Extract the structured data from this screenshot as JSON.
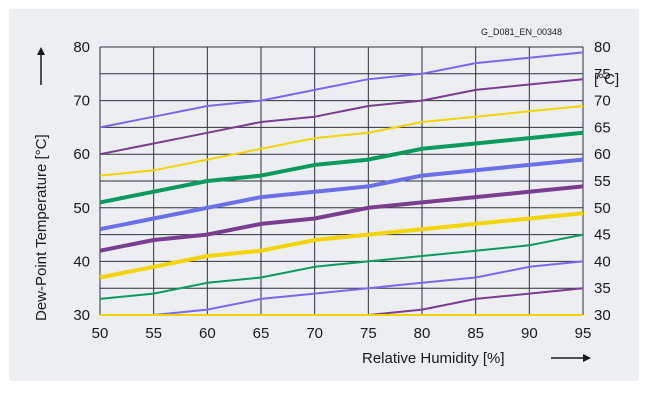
{
  "chart_data": {
    "type": "line",
    "code": "G_D081_EN_00348",
    "xlabel": "Relative Humidity [%]",
    "ylabel": "Dew-Point Temperature [°C]",
    "secondary_axis_unit": "[°C]",
    "xlim": [
      50,
      95
    ],
    "ylim": [
      30,
      80
    ],
    "xticks": [
      50,
      55,
      60,
      65,
      70,
      75,
      80,
      85,
      90,
      95
    ],
    "yticks": [
      30,
      40,
      50,
      60,
      70,
      80
    ],
    "y2ticks": [
      30,
      35,
      40,
      45,
      50,
      55,
      60,
      65,
      70,
      75,
      80
    ],
    "grid": true,
    "x": [
      50,
      55,
      60,
      65,
      70,
      75,
      80,
      85,
      90,
      95
    ],
    "series": [
      {
        "color": "#7b68ee",
        "width": 2,
        "values": [
          65,
          67,
          69,
          70,
          72,
          74,
          75,
          77,
          78,
          79
        ]
      },
      {
        "color": "#7a3e8f",
        "width": 2,
        "values": [
          60,
          62,
          64,
          66,
          67,
          69,
          70,
          72,
          73,
          74
        ]
      },
      {
        "color": "#f2d400",
        "width": 2,
        "values": [
          56,
          57,
          59,
          61,
          63,
          64,
          66,
          67,
          68,
          69
        ]
      },
      {
        "color": "#0a9a5c",
        "width": 4,
        "values": [
          51,
          53,
          55,
          56,
          58,
          59,
          61,
          62,
          63,
          64
        ]
      },
      {
        "color": "#6b6fe8",
        "width": 4,
        "values": [
          46,
          48,
          50,
          52,
          53,
          54,
          56,
          57,
          58,
          59
        ]
      },
      {
        "color": "#7a3e8f",
        "width": 4,
        "values": [
          42,
          44,
          45,
          47,
          48,
          50,
          51,
          52,
          53,
          54
        ]
      },
      {
        "color": "#f2d400",
        "width": 4,
        "values": [
          37,
          39,
          41,
          42,
          44,
          45,
          46,
          47,
          48,
          49
        ]
      },
      {
        "color": "#0a9a5c",
        "width": 2,
        "values": [
          33,
          34,
          36,
          37,
          39,
          40,
          41,
          42,
          43,
          45
        ]
      },
      {
        "color": "#7b68ee",
        "width": 2,
        "values": [
          30,
          30,
          31,
          33,
          34,
          35,
          36,
          37,
          39,
          40
        ]
      },
      {
        "color": "#7a3e8f",
        "width": 2,
        "values": [
          30,
          30,
          30,
          30,
          30,
          30,
          31,
          33,
          34,
          35
        ]
      },
      {
        "color": "#f2d400",
        "width": 2,
        "values": [
          30,
          30,
          30,
          30,
          30,
          30,
          30,
          30,
          30,
          30
        ]
      }
    ]
  }
}
